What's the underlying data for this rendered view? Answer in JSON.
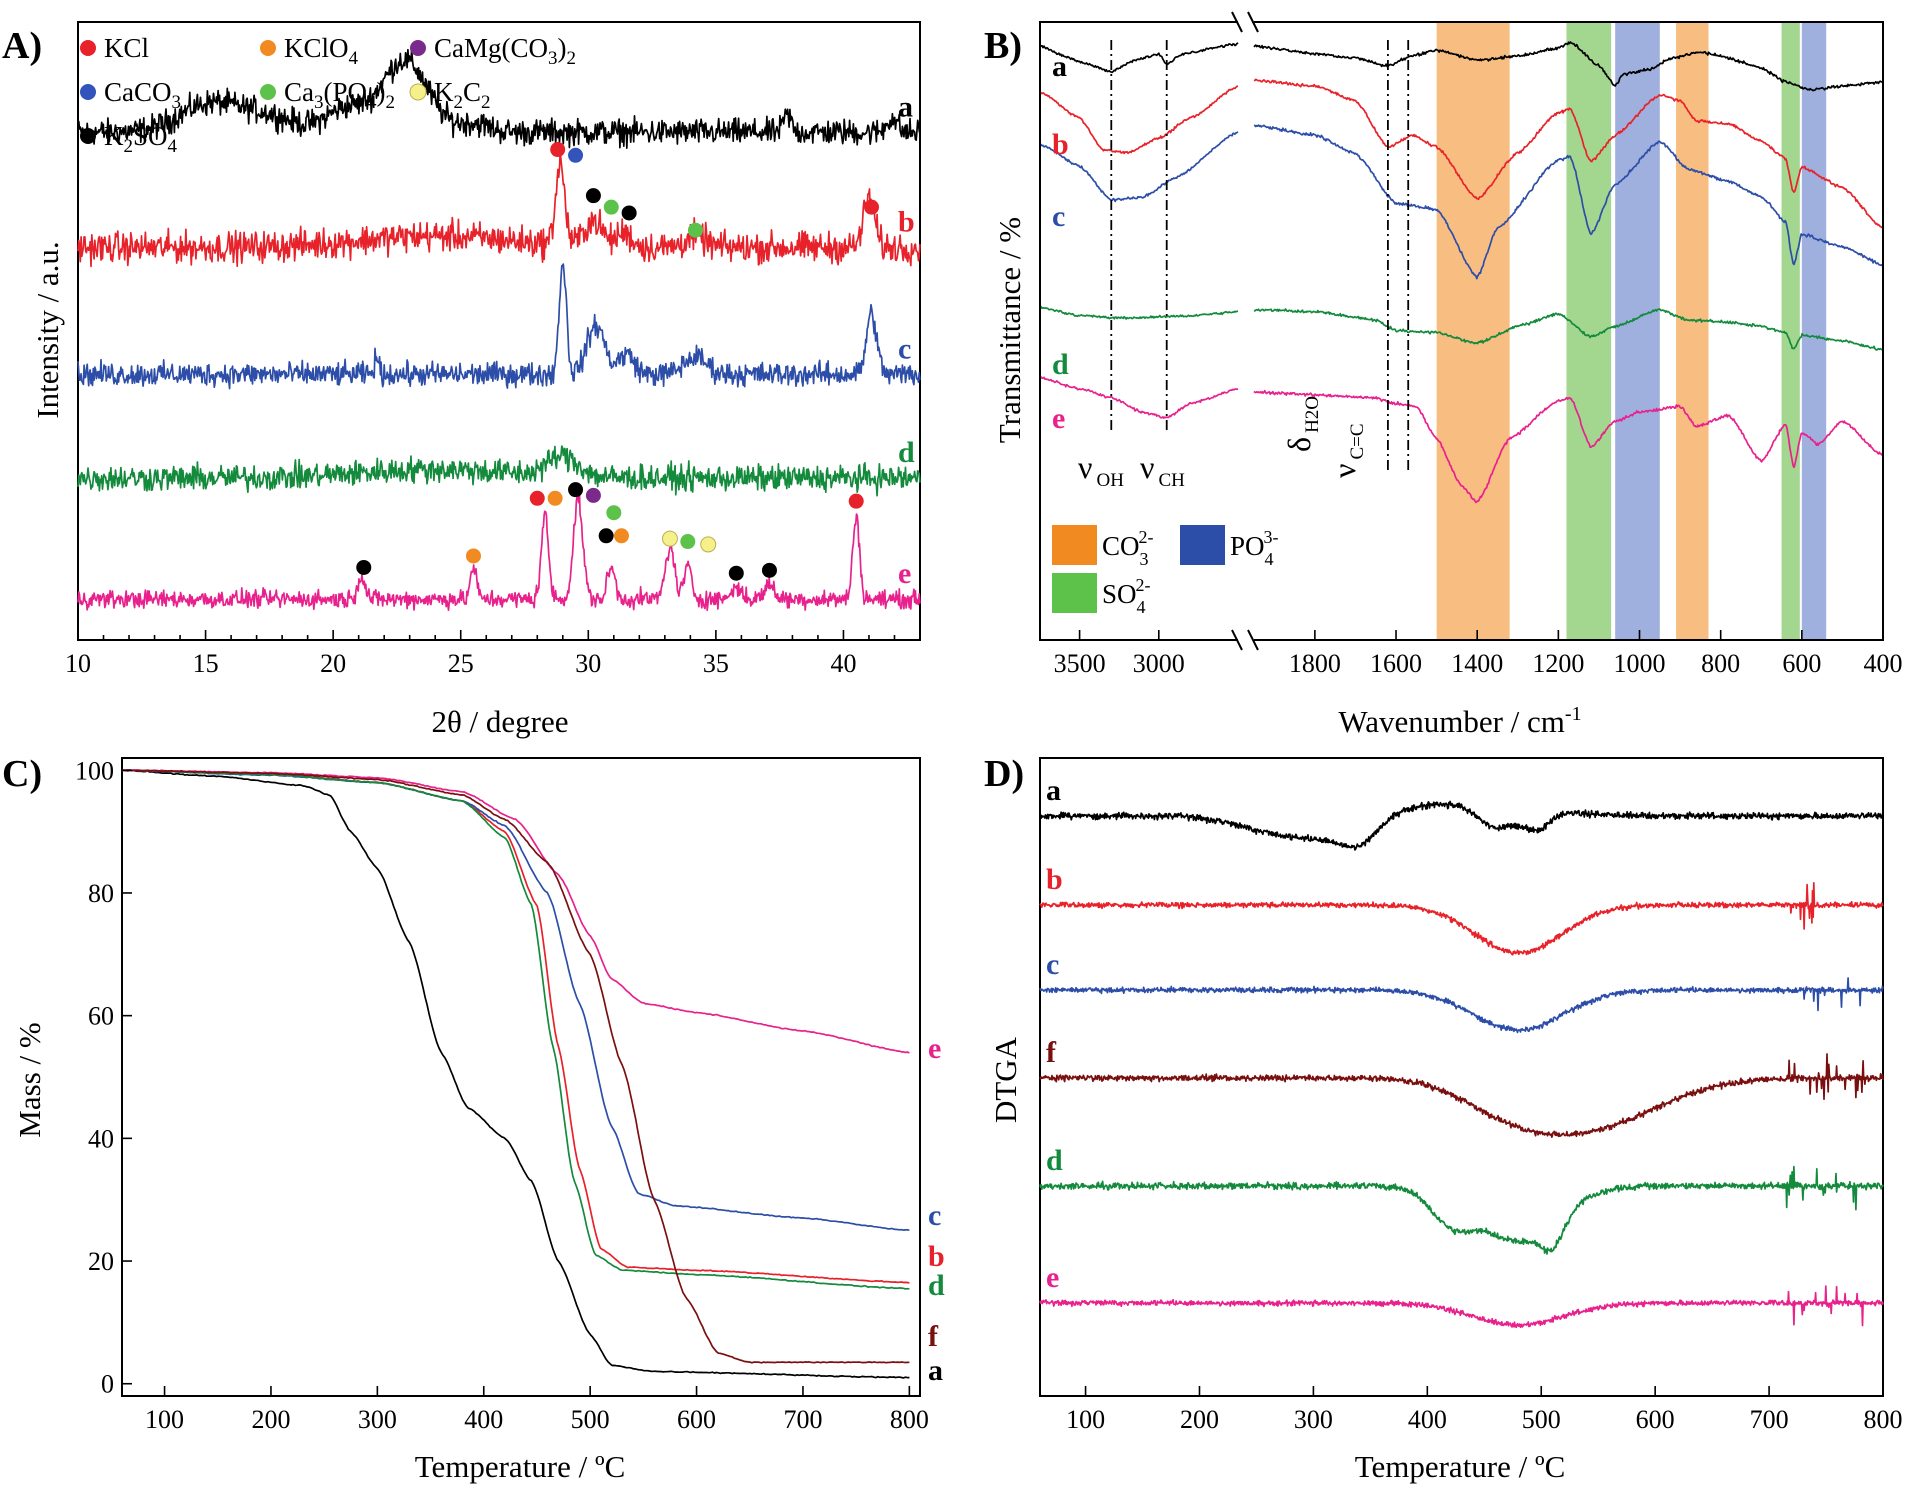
{
  "panels_labels": {
    "A": "A)",
    "B": "B)",
    "C": "C)",
    "D": "D)"
  },
  "colors": {
    "a": "#000000",
    "b": "#e8222a",
    "c": "#2d4ea8",
    "d": "#138a3c",
    "e": "#e8218c",
    "f": "#7a0f0f",
    "KCl": "#e8222a",
    "KClO4": "#f28a22",
    "CaMgCO3": "#7b2a8c",
    "CaCO3": "#3355bb",
    "Ca3PO4": "#5cc24a",
    "K2C2": "#f6f08a",
    "K2SO4": "#000000",
    "CO3band": "#f6b26b",
    "SO4band": "#93cf7a",
    "PO4band": "#8ea2d8"
  },
  "chart_data": [
    {
      "panel": "A",
      "type": "line",
      "title": "",
      "xlabel": "2θ / degree",
      "ylabel": "Intensity / a.u.",
      "xlim": [
        10,
        43
      ],
      "xticks": [
        10,
        15,
        20,
        25,
        30,
        35,
        40
      ],
      "yticks": [],
      "series": [
        {
          "name": "a",
          "label": "a",
          "baseline": 8.3,
          "noise": 0.22,
          "peaks": [
            [
              15.2,
              0.5,
              1.2
            ],
            [
              17.5,
              0.25,
              1.0
            ],
            [
              22.8,
              1.25,
              0.9
            ],
            [
              20.5,
              0.4,
              0.8
            ],
            [
              25.5,
              0.15,
              0.6
            ],
            [
              37.8,
              0.3,
              0.15
            ],
            [
              41.9,
              0.25,
              0.2
            ]
          ]
        },
        {
          "name": "b",
          "label": "b",
          "baseline": 6.3,
          "noise": 0.26,
          "peaks": [
            [
              28.9,
              1.4,
              0.18
            ],
            [
              30.2,
              0.45,
              0.35
            ],
            [
              31.4,
              0.25,
              0.3
            ],
            [
              34.2,
              0.2,
              0.4
            ],
            [
              41.0,
              0.85,
              0.22
            ],
            [
              24.0,
              0.2,
              3.0
            ]
          ]
        },
        {
          "name": "c",
          "label": "c",
          "baseline": 4.1,
          "noise": 0.2,
          "peaks": [
            [
              29.0,
              1.95,
              0.14
            ],
            [
              30.3,
              0.85,
              0.35
            ],
            [
              31.5,
              0.35,
              0.3
            ],
            [
              34.2,
              0.3,
              0.45
            ],
            [
              41.1,
              1.05,
              0.2
            ],
            [
              21.7,
              0.3,
              0.08
            ]
          ]
        },
        {
          "name": "d",
          "label": "d",
          "baseline": 2.3,
          "noise": 0.22,
          "peaks": [
            [
              29.0,
              0.35,
              0.6
            ],
            [
              24.0,
              0.15,
              3.0
            ]
          ]
        },
        {
          "name": "e",
          "label": "e",
          "baseline": 0.2,
          "noise": 0.15,
          "peaks": [
            [
              21.1,
              0.4,
              0.15
            ],
            [
              25.5,
              0.55,
              0.12
            ],
            [
              28.3,
              1.45,
              0.14
            ],
            [
              29.6,
              1.75,
              0.18
            ],
            [
              30.9,
              0.55,
              0.15
            ],
            [
              33.2,
              0.9,
              0.18
            ],
            [
              33.9,
              0.55,
              0.15
            ],
            [
              35.8,
              0.2,
              0.2
            ],
            [
              37.1,
              0.25,
              0.2
            ],
            [
              40.5,
              1.45,
              0.13
            ]
          ]
        }
      ],
      "markers": [
        {
          "phase": "KCl",
          "x": 28.8,
          "y": 8.0
        },
        {
          "phase": "CaCO3",
          "x": 29.5,
          "y": 7.9
        },
        {
          "phase": "K2SO4",
          "x": 30.2,
          "y": 7.2
        },
        {
          "phase": "Ca3PO4",
          "x": 30.9,
          "y": 7.0
        },
        {
          "phase": "K2SO4",
          "x": 31.6,
          "y": 6.9
        },
        {
          "phase": "Ca3PO4",
          "x": 34.2,
          "y": 6.6
        },
        {
          "phase": "KCl",
          "x": 41.1,
          "y": 7.0
        },
        {
          "phase": "K2SO4",
          "x": 21.2,
          "y": 0.75
        },
        {
          "phase": "KClO4",
          "x": 25.5,
          "y": 0.95
        },
        {
          "phase": "KCl",
          "x": 28.0,
          "y": 1.95
        },
        {
          "phase": "KClO4",
          "x": 28.7,
          "y": 1.95
        },
        {
          "phase": "K2SO4",
          "x": 29.5,
          "y": 2.1
        },
        {
          "phase": "CaMgCO3",
          "x": 30.2,
          "y": 2.0
        },
        {
          "phase": "Ca3PO4",
          "x": 31.0,
          "y": 1.7
        },
        {
          "phase": "K2SO4",
          "x": 30.7,
          "y": 1.3
        },
        {
          "phase": "KClO4",
          "x": 31.3,
          "y": 1.3
        },
        {
          "phase": "K2C2",
          "x": 33.2,
          "y": 1.25
        },
        {
          "phase": "Ca3PO4",
          "x": 33.9,
          "y": 1.2
        },
        {
          "phase": "K2C2",
          "x": 34.7,
          "y": 1.15
        },
        {
          "phase": "K2SO4",
          "x": 35.8,
          "y": 0.65
        },
        {
          "phase": "K2SO4",
          "x": 37.1,
          "y": 0.7
        },
        {
          "phase": "KCl",
          "x": 40.5,
          "y": 1.9
        }
      ],
      "legend": [
        {
          "phase": "KCl",
          "label_parts": [
            "KCl"
          ]
        },
        {
          "phase": "KClO4",
          "label_parts": [
            "KClO",
            "4",
            ""
          ]
        },
        {
          "phase": "CaMgCO3",
          "label_parts": [
            "CaMg(CO",
            "3",
            ")",
            "2"
          ]
        },
        {
          "phase": "CaCO3",
          "label_parts": [
            "CaCO",
            "3",
            ""
          ]
        },
        {
          "phase": "Ca3PO4",
          "label_parts": [
            "Ca",
            "3",
            "(PO",
            "4",
            ")",
            "2"
          ]
        },
        {
          "phase": "K2C2",
          "label_parts": [
            "K",
            "2",
            "C",
            "2"
          ]
        },
        {
          "phase": "K2SO4",
          "label_parts": [
            "K",
            "2",
            "SO",
            "4"
          ]
        }
      ]
    },
    {
      "panel": "B",
      "type": "line",
      "xlabel": "Wavenumber / cm",
      "xlabel_sup": "-1",
      "ylabel": "Transmittance / %",
      "x_break": [
        2500,
        1950
      ],
      "xticks_left": [
        3500,
        3000
      ],
      "xticks_right": [
        1800,
        1600,
        1400,
        1200,
        1000,
        800,
        600,
        400
      ],
      "bands": [
        {
          "ion": "CO3",
          "range": [
            1500,
            1320
          ]
        },
        {
          "ion": "SO4",
          "range": [
            1180,
            1070
          ]
        },
        {
          "ion": "PO4",
          "range": [
            1060,
            950
          ]
        },
        {
          "ion": "CO3",
          "range": [
            910,
            830
          ]
        },
        {
          "ion": "SO4",
          "range": [
            650,
            605
          ]
        },
        {
          "ion": "PO4",
          "range": [
            600,
            540
          ]
        }
      ],
      "vlines": [
        3300,
        2950,
        1620,
        1570
      ],
      "annotations": [
        {
          "main": "ν",
          "sub": "OH"
        },
        {
          "main": "ν",
          "sub": "CH"
        },
        {
          "main": "δ",
          "sub": "H2O"
        },
        {
          "main": "ν",
          "sub": "C=C"
        }
      ],
      "legend": [
        {
          "ion": "CO3",
          "main": "CO",
          "sub": "3",
          "sup": "2-"
        },
        {
          "ion": "PO4",
          "main": "PO",
          "sub": "4",
          "sup": "3-"
        },
        {
          "ion": "SO4",
          "main": "SO",
          "sub": "4",
          "sup": "2-"
        }
      ],
      "curve_labels": [
        "a",
        "b",
        "c",
        "d",
        "e"
      ]
    },
    {
      "panel": "C",
      "type": "line",
      "xlabel": "Temperature / ºC",
      "ylabel": "Mass / %",
      "xlim": [
        60,
        810
      ],
      "ylim": [
        -2,
        102
      ],
      "xticks": [
        100,
        200,
        300,
        400,
        500,
        600,
        700,
        800
      ],
      "yticks": [
        0,
        20,
        40,
        60,
        80,
        100
      ],
      "series": [
        {
          "name": "a",
          "label": "a",
          "points": [
            [
              60,
              100
            ],
            [
              150,
              99
            ],
            [
              230,
              97.5
            ],
            [
              255,
              96
            ],
            [
              275,
              90
            ],
            [
              300,
              84
            ],
            [
              330,
              72
            ],
            [
              360,
              54
            ],
            [
              385,
              45
            ],
            [
              420,
              40
            ],
            [
              445,
              33
            ],
            [
              470,
              20
            ],
            [
              500,
              8
            ],
            [
              520,
              3
            ],
            [
              560,
              2
            ],
            [
              800,
              1
            ]
          ]
        },
        {
          "name": "b",
          "label": "b",
          "points": [
            [
              60,
              100
            ],
            [
              200,
              99.5
            ],
            [
              300,
              98
            ],
            [
              380,
              95
            ],
            [
              420,
              90
            ],
            [
              450,
              78
            ],
            [
              470,
              55
            ],
            [
              490,
              35
            ],
            [
              510,
              22
            ],
            [
              535,
              19
            ],
            [
              600,
              18.5
            ],
            [
              800,
              16.5
            ]
          ]
        },
        {
          "name": "c",
          "label": "c",
          "points": [
            [
              60,
              100
            ],
            [
              200,
              99.2
            ],
            [
              300,
              98
            ],
            [
              380,
              95
            ],
            [
              420,
              91
            ],
            [
              460,
              80
            ],
            [
              490,
              62
            ],
            [
              520,
              42
            ],
            [
              545,
              31
            ],
            [
              580,
              29
            ],
            [
              700,
              27
            ],
            [
              800,
              25
            ]
          ]
        },
        {
          "name": "d",
          "label": "d",
          "points": [
            [
              60,
              100
            ],
            [
              200,
              99.3
            ],
            [
              300,
              98
            ],
            [
              380,
              95
            ],
            [
              420,
              89
            ],
            [
              445,
              78
            ],
            [
              465,
              55
            ],
            [
              485,
              33
            ],
            [
              505,
              21
            ],
            [
              530,
              18.5
            ],
            [
              600,
              17.8
            ],
            [
              800,
              15.5
            ]
          ]
        },
        {
          "name": "e",
          "label": "e",
          "points": [
            [
              60,
              100
            ],
            [
              200,
              99.6
            ],
            [
              300,
              98.8
            ],
            [
              380,
              96.5
            ],
            [
              430,
              92
            ],
            [
              470,
              83
            ],
            [
              500,
              73
            ],
            [
              520,
              66
            ],
            [
              550,
              62
            ],
            [
              600,
              60.5
            ],
            [
              700,
              57.5
            ],
            [
              800,
              54
            ]
          ]
        },
        {
          "name": "f",
          "label": "f",
          "points": [
            [
              60,
              100
            ],
            [
              200,
              99.5
            ],
            [
              300,
              98.5
            ],
            [
              380,
              96
            ],
            [
              420,
              92
            ],
            [
              460,
              85
            ],
            [
              500,
              70
            ],
            [
              530,
              52
            ],
            [
              560,
              30
            ],
            [
              590,
              14
            ],
            [
              620,
              5
            ],
            [
              650,
              3.5
            ],
            [
              800,
              3.5
            ]
          ]
        }
      ]
    },
    {
      "panel": "D",
      "type": "line",
      "xlabel": "Temperature / ºC",
      "ylabel": "DTGA",
      "xlim": [
        60,
        800
      ],
      "xticks": [
        100,
        200,
        300,
        400,
        500,
        600,
        700,
        800
      ],
      "yticks": [],
      "series": [
        {
          "name": "a",
          "label": "a",
          "baseline": 11.5,
          "noise": 0.08
        },
        {
          "name": "b",
          "label": "b",
          "baseline": 9.2,
          "noise": 0.1
        },
        {
          "name": "c",
          "label": "c",
          "baseline": 7.0,
          "noise": 0.1
        },
        {
          "name": "f",
          "label": "f",
          "baseline": 4.8,
          "noise": 0.12
        },
        {
          "name": "d",
          "label": "d",
          "baseline": 2.6,
          "noise": 0.12
        },
        {
          "name": "e",
          "label": "e",
          "baseline": 0.2,
          "noise": 0.1
        }
      ]
    }
  ]
}
